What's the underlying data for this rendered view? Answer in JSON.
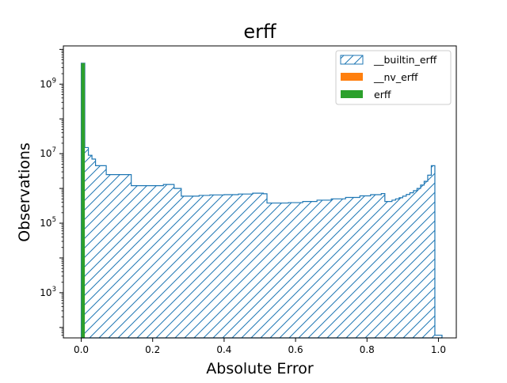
{
  "chart_data": {
    "type": "histogram",
    "title": "erff",
    "xlabel": "Absolute Error",
    "ylabel": "Observations",
    "xlim": [
      -0.05,
      1.05
    ],
    "ylim_log10": [
      1.7,
      10.1
    ],
    "yscale": "log",
    "grid": false,
    "legend_position": "top-right",
    "x_ticks": [
      {
        "value": 0.0,
        "label": "0.0"
      },
      {
        "value": 0.2,
        "label": "0.2"
      },
      {
        "value": 0.4,
        "label": "0.4"
      },
      {
        "value": 0.6,
        "label": "0.6"
      },
      {
        "value": 0.8,
        "label": "0.8"
      },
      {
        "value": 1.0,
        "label": "1.0"
      }
    ],
    "y_ticks": [
      {
        "exp": 3,
        "base": "10",
        "sup": "3"
      },
      {
        "exp": 5,
        "base": "10",
        "sup": "5"
      },
      {
        "exp": 7,
        "base": "10",
        "sup": "7"
      },
      {
        "exp": 9,
        "base": "10",
        "sup": "9"
      }
    ],
    "series": [
      {
        "name": "__builtin_erff",
        "style": "hatched-step",
        "color": "#1f77b4",
        "points": [
          [
            0.0,
            4000000000.0
          ],
          [
            0.01,
            15000000.0
          ],
          [
            0.02,
            9000000.0
          ],
          [
            0.03,
            7000000.0
          ],
          [
            0.04,
            4500000.0
          ],
          [
            0.07,
            2500000.0
          ],
          [
            0.14,
            1200000.0
          ],
          [
            0.23,
            1300000.0
          ],
          [
            0.26,
            1000000.0
          ],
          [
            0.28,
            600000.0
          ],
          [
            0.33,
            630000.0
          ],
          [
            0.36,
            650000.0
          ],
          [
            0.4,
            660000.0
          ],
          [
            0.44,
            690000.0
          ],
          [
            0.48,
            730000.0
          ],
          [
            0.51,
            700000.0
          ],
          [
            0.52,
            380000.0
          ],
          [
            0.58,
            390000.0
          ],
          [
            0.62,
            420000.0
          ],
          [
            0.66,
            460000.0
          ],
          [
            0.7,
            500000.0
          ],
          [
            0.74,
            550000.0
          ],
          [
            0.78,
            610000.0
          ],
          [
            0.81,
            660000.0
          ],
          [
            0.84,
            710000.0
          ],
          [
            0.85,
            420000.0
          ],
          [
            0.87,
            460000.0
          ],
          [
            0.88,
            500000.0
          ],
          [
            0.89,
            540000.0
          ],
          [
            0.9,
            600000.0
          ],
          [
            0.91,
            670000.0
          ],
          [
            0.92,
            750000.0
          ],
          [
            0.93,
            860000.0
          ],
          [
            0.94,
            1000000.0
          ],
          [
            0.95,
            1250000.0
          ],
          [
            0.96,
            1600000.0
          ],
          [
            0.97,
            2400000.0
          ],
          [
            0.98,
            4500000.0
          ],
          [
            0.99,
            60
          ],
          [
            1.0,
            60
          ]
        ]
      },
      {
        "name": "__nv_erff",
        "style": "bar",
        "color": "#ff7f0e",
        "bar_x": [
          0.0,
          0.01
        ],
        "value": 4000000000.0
      },
      {
        "name": "erff",
        "style": "bar",
        "color": "#2ca02c",
        "bar_x": [
          0.0,
          0.01
        ],
        "value": 4000000000.0
      }
    ]
  }
}
